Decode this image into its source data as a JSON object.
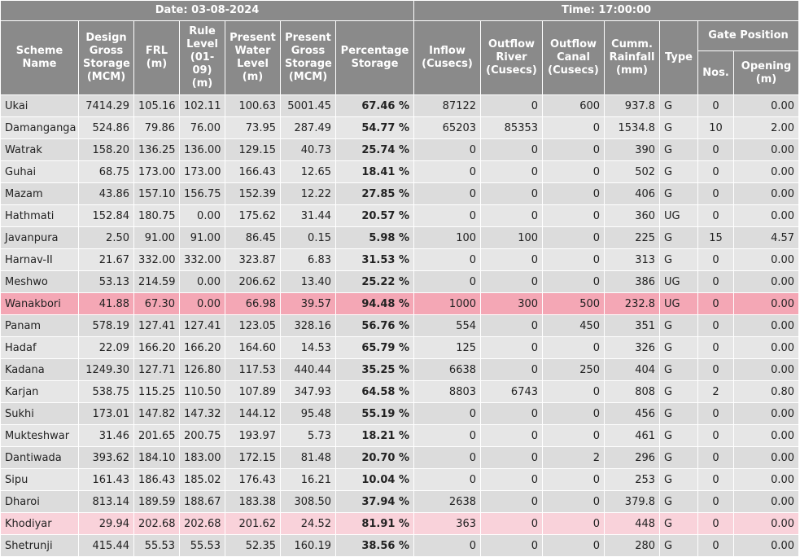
{
  "header": {
    "date_label": "Date: 03-08-2024",
    "time_label": "Time: 17:00:00"
  },
  "columns": {
    "scheme": "Scheme Name",
    "design": "Design Gross Storage (MCM)",
    "frl": "FRL (m)",
    "rule": "Rule Level (01-09) (m)",
    "pwl": "Present Water Level (m)",
    "pgs": "Present Gross Storage (MCM)",
    "pct": "Percentage Storage",
    "inflow": "Inflow (Cusecs)",
    "out_river": "Outflow River (Cusecs)",
    "out_canal": "Outflow Canal (Cusecs)",
    "rain": "Cumm. Rainfall (mm)",
    "type": "Type",
    "gate": "Gate Position",
    "nos": "Nos.",
    "opening": "Opening (m)"
  },
  "highlight_colors": {
    "selected": "#f4a7b5",
    "marked": "#f9d2da"
  },
  "rows": [
    {
      "name": "Ukai",
      "design": "7414.29",
      "frl": "105.16",
      "rule": "102.11",
      "pwl": "100.63",
      "pgs": "5001.45",
      "pct": "67.46 %",
      "inflow": "87122",
      "out_river": "0",
      "out_canal": "600",
      "rain": "937.8",
      "type": "G",
      "nos": "0",
      "opening": "0.00",
      "state": "normal"
    },
    {
      "name": "Damanganga",
      "design": "524.86",
      "frl": "79.86",
      "rule": "76.00",
      "pwl": "73.95",
      "pgs": "287.49",
      "pct": "54.77 %",
      "inflow": "65203",
      "out_river": "85353",
      "out_canal": "0",
      "rain": "1534.8",
      "type": "G",
      "nos": "10",
      "opening": "2.00",
      "state": "normal"
    },
    {
      "name": "Watrak",
      "design": "158.20",
      "frl": "136.25",
      "rule": "136.00",
      "pwl": "129.15",
      "pgs": "40.73",
      "pct": "25.74 %",
      "inflow": "0",
      "out_river": "0",
      "out_canal": "0",
      "rain": "390",
      "type": "G",
      "nos": "0",
      "opening": "0.00",
      "state": "normal"
    },
    {
      "name": "Guhai",
      "design": "68.75",
      "frl": "173.00",
      "rule": "173.00",
      "pwl": "166.43",
      "pgs": "12.65",
      "pct": "18.41 %",
      "inflow": "0",
      "out_river": "0",
      "out_canal": "0",
      "rain": "502",
      "type": "G",
      "nos": "0",
      "opening": "0.00",
      "state": "normal"
    },
    {
      "name": "Mazam",
      "design": "43.86",
      "frl": "157.10",
      "rule": "156.75",
      "pwl": "152.39",
      "pgs": "12.22",
      "pct": "27.85 %",
      "inflow": "0",
      "out_river": "0",
      "out_canal": "0",
      "rain": "406",
      "type": "G",
      "nos": "0",
      "opening": "0.00",
      "state": "normal"
    },
    {
      "name": "Hathmati",
      "design": "152.84",
      "frl": "180.75",
      "rule": "0.00",
      "pwl": "175.62",
      "pgs": "31.44",
      "pct": "20.57 %",
      "inflow": "0",
      "out_river": "0",
      "out_canal": "0",
      "rain": "360",
      "type": "UG",
      "nos": "0",
      "opening": "0.00",
      "state": "normal"
    },
    {
      "name": "Javanpura",
      "design": "2.50",
      "frl": "91.00",
      "rule": "91.00",
      "pwl": "86.45",
      "pgs": "0.15",
      "pct": "5.98 %",
      "inflow": "100",
      "out_river": "100",
      "out_canal": "0",
      "rain": "225",
      "type": "G",
      "nos": "15",
      "opening": "4.57",
      "state": "normal"
    },
    {
      "name": "Harnav-II",
      "design": "21.67",
      "frl": "332.00",
      "rule": "332.00",
      "pwl": "323.87",
      "pgs": "6.83",
      "pct": "31.53 %",
      "inflow": "0",
      "out_river": "0",
      "out_canal": "0",
      "rain": "313",
      "type": "G",
      "nos": "0",
      "opening": "0.00",
      "state": "normal"
    },
    {
      "name": "Meshwo",
      "design": "53.13",
      "frl": "214.59",
      "rule": "0.00",
      "pwl": "206.62",
      "pgs": "13.40",
      "pct": "25.22 %",
      "inflow": "0",
      "out_river": "0",
      "out_canal": "0",
      "rain": "386",
      "type": "UG",
      "nos": "0",
      "opening": "0.00",
      "state": "normal"
    },
    {
      "name": "Wanakbori",
      "design": "41.88",
      "frl": "67.30",
      "rule": "0.00",
      "pwl": "66.98",
      "pgs": "39.57",
      "pct": "94.48 %",
      "inflow": "1000",
      "out_river": "300",
      "out_canal": "500",
      "rain": "232.8",
      "type": "UG",
      "nos": "0",
      "opening": "0.00",
      "state": "selected"
    },
    {
      "name": "Panam",
      "design": "578.19",
      "frl": "127.41",
      "rule": "127.41",
      "pwl": "123.05",
      "pgs": "328.16",
      "pct": "56.76 %",
      "inflow": "554",
      "out_river": "0",
      "out_canal": "450",
      "rain": "351",
      "type": "G",
      "nos": "0",
      "opening": "0.00",
      "state": "normal"
    },
    {
      "name": "Hadaf",
      "design": "22.09",
      "frl": "166.20",
      "rule": "166.20",
      "pwl": "164.60",
      "pgs": "14.53",
      "pct": "65.79 %",
      "inflow": "125",
      "out_river": "0",
      "out_canal": "0",
      "rain": "326",
      "type": "G",
      "nos": "0",
      "opening": "0.00",
      "state": "normal"
    },
    {
      "name": "Kadana",
      "design": "1249.30",
      "frl": "127.71",
      "rule": "126.80",
      "pwl": "117.53",
      "pgs": "440.44",
      "pct": "35.25 %",
      "inflow": "6638",
      "out_river": "0",
      "out_canal": "250",
      "rain": "404",
      "type": "G",
      "nos": "0",
      "opening": "0.00",
      "state": "normal"
    },
    {
      "name": "Karjan",
      "design": "538.75",
      "frl": "115.25",
      "rule": "110.50",
      "pwl": "107.89",
      "pgs": "347.93",
      "pct": "64.58 %",
      "inflow": "8803",
      "out_river": "6743",
      "out_canal": "0",
      "rain": "808",
      "type": "G",
      "nos": "2",
      "opening": "0.80",
      "state": "normal"
    },
    {
      "name": "Sukhi",
      "design": "173.01",
      "frl": "147.82",
      "rule": "147.32",
      "pwl": "144.12",
      "pgs": "95.48",
      "pct": "55.19 %",
      "inflow": "0",
      "out_river": "0",
      "out_canal": "0",
      "rain": "456",
      "type": "G",
      "nos": "0",
      "opening": "0.00",
      "state": "normal"
    },
    {
      "name": "Mukteshwar",
      "design": "31.46",
      "frl": "201.65",
      "rule": "200.75",
      "pwl": "193.97",
      "pgs": "5.73",
      "pct": "18.21 %",
      "inflow": "0",
      "out_river": "0",
      "out_canal": "0",
      "rain": "461",
      "type": "G",
      "nos": "0",
      "opening": "0.00",
      "state": "normal"
    },
    {
      "name": "Dantiwada",
      "design": "393.62",
      "frl": "184.10",
      "rule": "183.00",
      "pwl": "172.15",
      "pgs": "81.48",
      "pct": "20.70 %",
      "inflow": "0",
      "out_river": "0",
      "out_canal": "2",
      "rain": "296",
      "type": "G",
      "nos": "0",
      "opening": "0.00",
      "state": "normal"
    },
    {
      "name": "Sipu",
      "design": "161.43",
      "frl": "186.43",
      "rule": "185.02",
      "pwl": "176.43",
      "pgs": "16.21",
      "pct": "10.04 %",
      "inflow": "0",
      "out_river": "0",
      "out_canal": "0",
      "rain": "253",
      "type": "G",
      "nos": "0",
      "opening": "0.00",
      "state": "normal"
    },
    {
      "name": "Dharoi",
      "design": "813.14",
      "frl": "189.59",
      "rule": "188.67",
      "pwl": "183.38",
      "pgs": "308.50",
      "pct": "37.94 %",
      "inflow": "2638",
      "out_river": "0",
      "out_canal": "0",
      "rain": "379.8",
      "type": "G",
      "nos": "0",
      "opening": "0.00",
      "state": "normal"
    },
    {
      "name": "Khodiyar",
      "design": "29.94",
      "frl": "202.68",
      "rule": "202.68",
      "pwl": "201.62",
      "pgs": "24.52",
      "pct": "81.91 %",
      "inflow": "363",
      "out_river": "0",
      "out_canal": "0",
      "rain": "448",
      "type": "G",
      "nos": "0",
      "opening": "0.00",
      "state": "marked"
    },
    {
      "name": "Shetrunji",
      "design": "415.44",
      "frl": "55.53",
      "rule": "55.53",
      "pwl": "52.35",
      "pgs": "160.19",
      "pct": "38.56 %",
      "inflow": "0",
      "out_river": "0",
      "out_canal": "0",
      "rain": "280",
      "type": "G",
      "nos": "0",
      "opening": "0.00",
      "state": "normal"
    }
  ]
}
